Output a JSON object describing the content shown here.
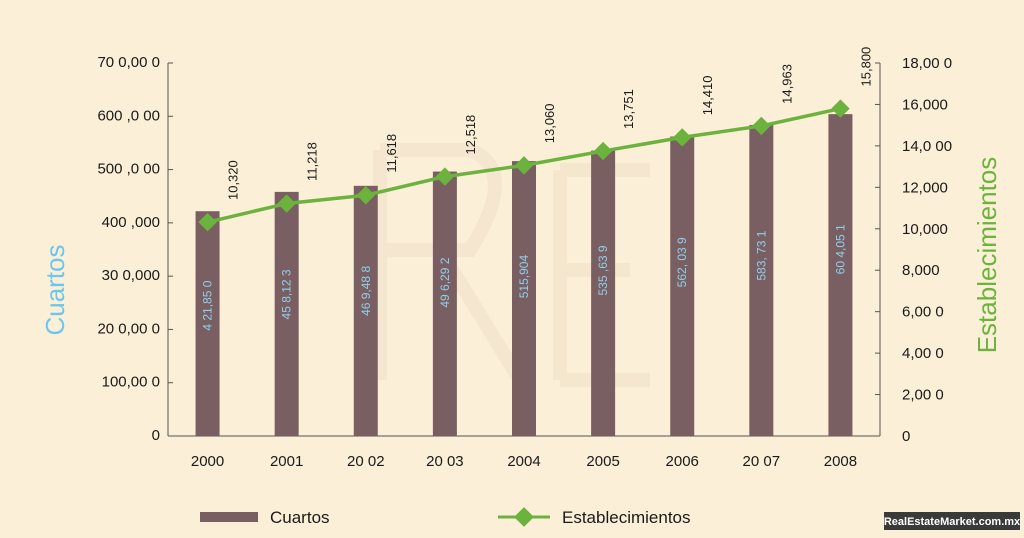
{
  "chart_data": {
    "type": "bar",
    "categories": [
      "2000",
      "2001",
      "20 02",
      "20 03",
      "2004",
      "2005",
      "2006",
      "20 07",
      "2008"
    ],
    "series": [
      {
        "name": "Cuartos",
        "type": "bar",
        "axis": "left",
        "values": [
          421850,
          458123,
          469488,
          496292,
          515904,
          535639,
          562039,
          583731,
          604051
        ],
        "labels": [
          "4 21,85 0",
          "45 8,12 3",
          "46 9,48 8",
          "49 6,29 2",
          "515,904",
          "535 ,63 9",
          "562, 03 9",
          "583, 73 1",
          "60 4,05 1"
        ]
      },
      {
        "name": "Establecimientos",
        "type": "line",
        "axis": "right",
        "values": [
          10320,
          11218,
          11618,
          12518,
          13060,
          13751,
          14410,
          14963,
          15800
        ],
        "labels": [
          "10,320",
          "11,218",
          "11,618",
          "12,518",
          "13,060",
          "13,751",
          "14,410",
          "14,963",
          "15,800"
        ]
      }
    ],
    "ylabel_left": "Cuartos",
    "ylabel_right": "Establecimientos",
    "ylim_left": [
      0,
      700000
    ],
    "ylim_right": [
      0,
      18000
    ],
    "left_ticks": [
      "0",
      "100,00 0",
      "20 0,00 0",
      "30 0,000",
      "400 ,000",
      "500 ,0 00",
      "600 ,0 00",
      "70 0,00 0"
    ],
    "right_ticks": [
      "0",
      "2,00 0",
      "4,00 0",
      "6,00 0",
      "8,000",
      "10,000",
      "12,000",
      "14,0 00",
      "16,000",
      "18,00 0"
    ],
    "legend_position": "bottom",
    "grid": false,
    "colors": {
      "bar": "#7a5f62",
      "line": "#6bb33c",
      "marker": "#6bb33c",
      "bar_label": "#8fd0ee",
      "background": "#fbefd7"
    }
  },
  "watermark": "RealEstateMarket.com.mx"
}
